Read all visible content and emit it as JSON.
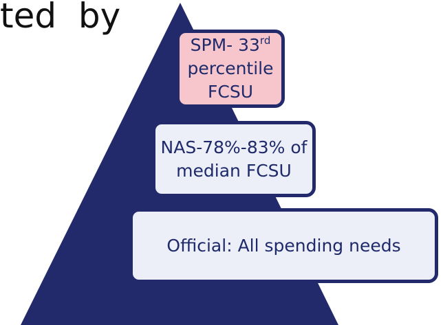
{
  "heading": "ted  by",
  "tiers": [
    {
      "line1": "SPM- 33",
      "sup": "rd",
      "line2": "percentile FCSU"
    },
    {
      "line1": "NAS-78%-83% of",
      "line2": "median FCSU"
    },
    {
      "line1": "Official: All spending needs"
    }
  ]
}
